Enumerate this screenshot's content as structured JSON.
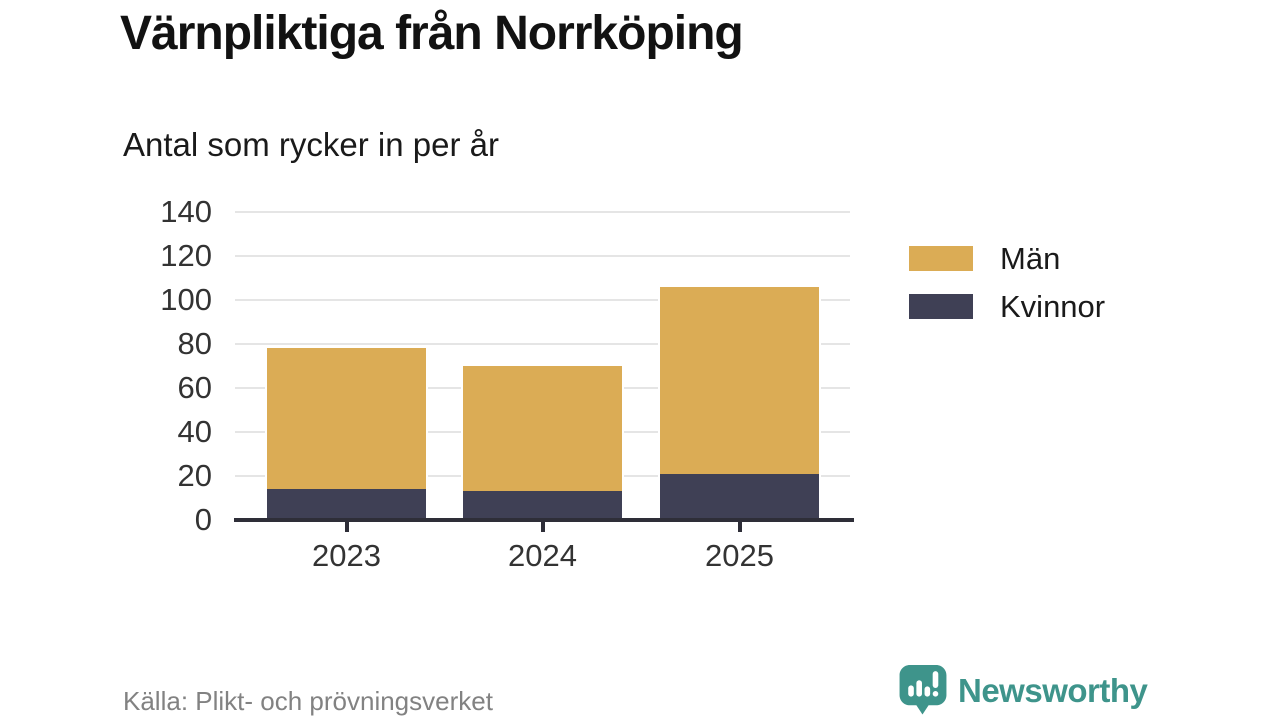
{
  "title": "Värnpliktiga från Norrköping",
  "subtitle": "Antal som rycker in per år",
  "source": "Källa: Plikt- och prövningsverket",
  "brand": {
    "name": "Newsworthy",
    "color": "#3E948B",
    "icon": "bar-chart-speech-bubble-icon"
  },
  "colors": {
    "men": "#DBAC55",
    "women": "#3F4055",
    "gridline": "#E5E5E5",
    "axis": "#2E2E38",
    "tick_label": "#333333",
    "source_text": "#828282",
    "brand_teal": "#3E948B"
  },
  "chart_data": {
    "type": "bar",
    "stacked": true,
    "title": "Värnpliktiga från Norrköping",
    "subtitle": "Antal som rycker in per år",
    "categories": [
      "2023",
      "2024",
      "2025"
    ],
    "series": [
      {
        "name": "Män",
        "color": "#DBAC55",
        "values": [
          65,
          58,
          86
        ]
      },
      {
        "name": "Kvinnor",
        "color": "#3F4055",
        "values": [
          14,
          13,
          21
        ]
      }
    ],
    "stack_totals": [
      79,
      71,
      107
    ],
    "xlabel": "",
    "ylabel": "",
    "ylim": [
      0,
      140
    ],
    "yticks": [
      0,
      20,
      40,
      60,
      80,
      100,
      120,
      140
    ],
    "grid": true,
    "legend_position": "right"
  }
}
